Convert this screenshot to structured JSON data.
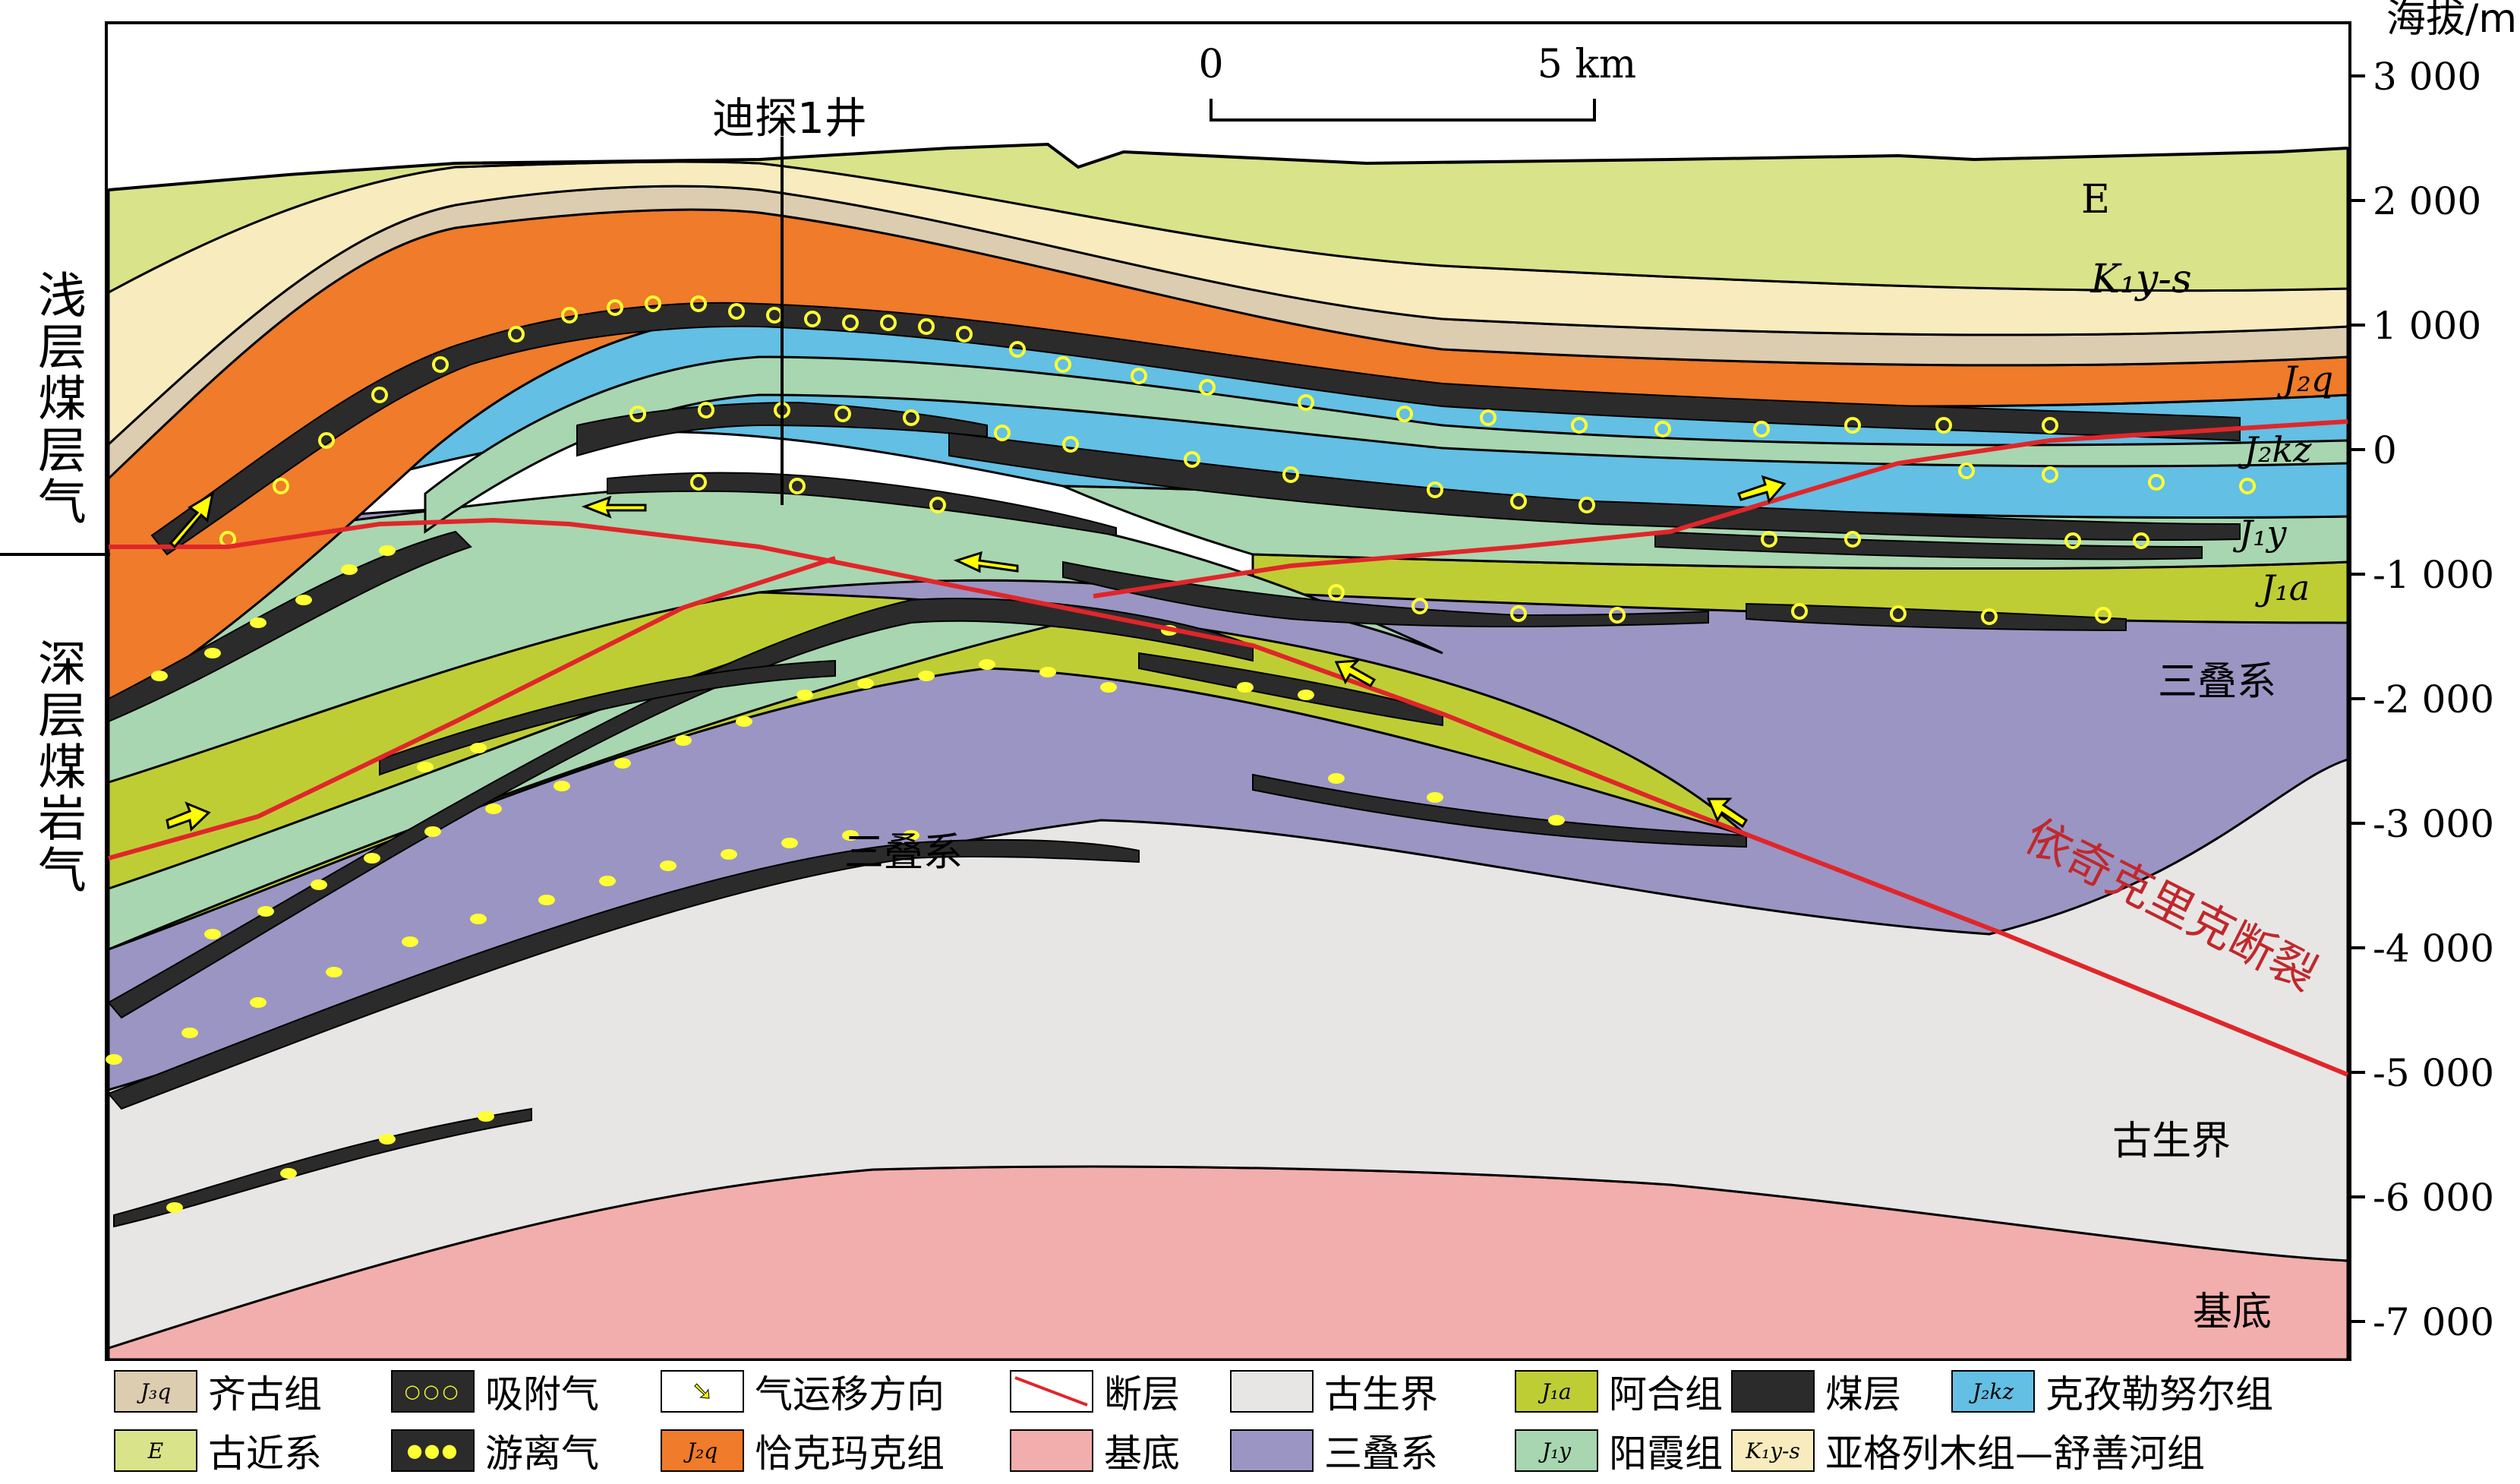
{
  "well_label": "迪探1井",
  "scale": {
    "start": "0",
    "end": "5 km"
  },
  "axis": {
    "title": "海拔/m",
    "ticks": [
      "3 000",
      "2 000",
      "1 000",
      "0",
      "-1 000",
      "-2 000",
      "-3 000",
      "-4 000",
      "-5 000",
      "-6 000",
      "-7 000"
    ]
  },
  "side_labels": {
    "upper": "浅层煤层气",
    "lower": "深层煤岩气"
  },
  "section_labels": {
    "E": "E",
    "K1ys": "K₁y-s",
    "J2q": "J₂q",
    "J2kz": "J₂kz",
    "J1y": "J₁y",
    "J1a": "J₁a",
    "triassic_right": "三叠系",
    "triassic_center": "三叠系",
    "paleozoic": "古生界",
    "basement": "基底",
    "fault": "依奇克里克断裂"
  },
  "colors": {
    "E": "#d9e38a",
    "K1ys": "#f8ecbe",
    "J3q": "#dccdb0",
    "J2q": "#ef7b2b",
    "J2kz": "#63bfe3",
    "J1y": "#a8d6b0",
    "J1a": "#bfcd35",
    "triassic": "#9b95c3",
    "paleozoic": "#e7e6e5",
    "basement": "#f2aeac",
    "coal": "#2b2b2b",
    "adsorbed_dot": "#ffff33",
    "fault": "#e0262a",
    "arrow": "#ffff00"
  },
  "legend": [
    {
      "swatch": "J3q",
      "swatch_text": "J₃q",
      "label": "齐古组"
    },
    {
      "swatch": "adsorbed",
      "swatch_text": "",
      "label": "吸附气"
    },
    {
      "swatch": "migration",
      "swatch_text": "",
      "label": "气运移方向"
    },
    {
      "swatch": "fault",
      "swatch_text": "",
      "label": "断层"
    },
    {
      "swatch": "paleozoic",
      "swatch_text": "",
      "label": "古生界"
    },
    {
      "swatch": "J1a",
      "swatch_text": "J₁a",
      "label": "阿合组"
    },
    {
      "swatch": "coal",
      "swatch_text": "",
      "label": "煤层"
    },
    {
      "swatch": "J2kz",
      "swatch_text": "J₂kz",
      "label": "克孜勒努尔组"
    },
    {
      "swatch": "E",
      "swatch_text": "E",
      "label": "古近系"
    },
    {
      "swatch": "free",
      "swatch_text": "",
      "label": "游离气"
    },
    {
      "swatch": "J2q",
      "swatch_text": "J₂q",
      "label": "恰克玛克组"
    },
    {
      "swatch": "basement",
      "swatch_text": "",
      "label": "基底"
    },
    {
      "swatch": "triassic",
      "swatch_text": "",
      "label": "三叠系"
    },
    {
      "swatch": "J1y",
      "swatch_text": "J₁y",
      "label": "阳霞组"
    },
    {
      "swatch": "K1ys",
      "swatch_text": "K₁y-s",
      "label": "亚格列木组—舒善河组"
    }
  ]
}
